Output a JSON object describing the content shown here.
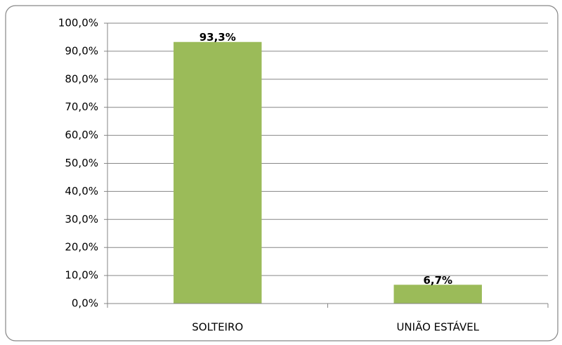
{
  "chart_data": {
    "type": "bar",
    "categories": [
      "SOLTEIRO",
      "UNIÃO ESTÁVEL"
    ],
    "values": [
      93.3,
      6.7
    ],
    "value_labels": [
      "93,3%",
      "6,7%"
    ],
    "color": "#9bbb59",
    "ylim": [
      0,
      100
    ],
    "yticks": [
      {
        "value": 0,
        "label": "0,0%"
      },
      {
        "value": 10,
        "label": "10,0%"
      },
      {
        "value": 20,
        "label": "20,0%"
      },
      {
        "value": 30,
        "label": "30,0%"
      },
      {
        "value": 40,
        "label": "40,0%"
      },
      {
        "value": 50,
        "label": "50,0%"
      },
      {
        "value": 60,
        "label": "60,0%"
      },
      {
        "value": 70,
        "label": "70,0%"
      },
      {
        "value": 80,
        "label": "80,0%"
      },
      {
        "value": 90,
        "label": "90,0%"
      },
      {
        "value": 100,
        "label": "100,0%"
      }
    ],
    "grid": true
  }
}
